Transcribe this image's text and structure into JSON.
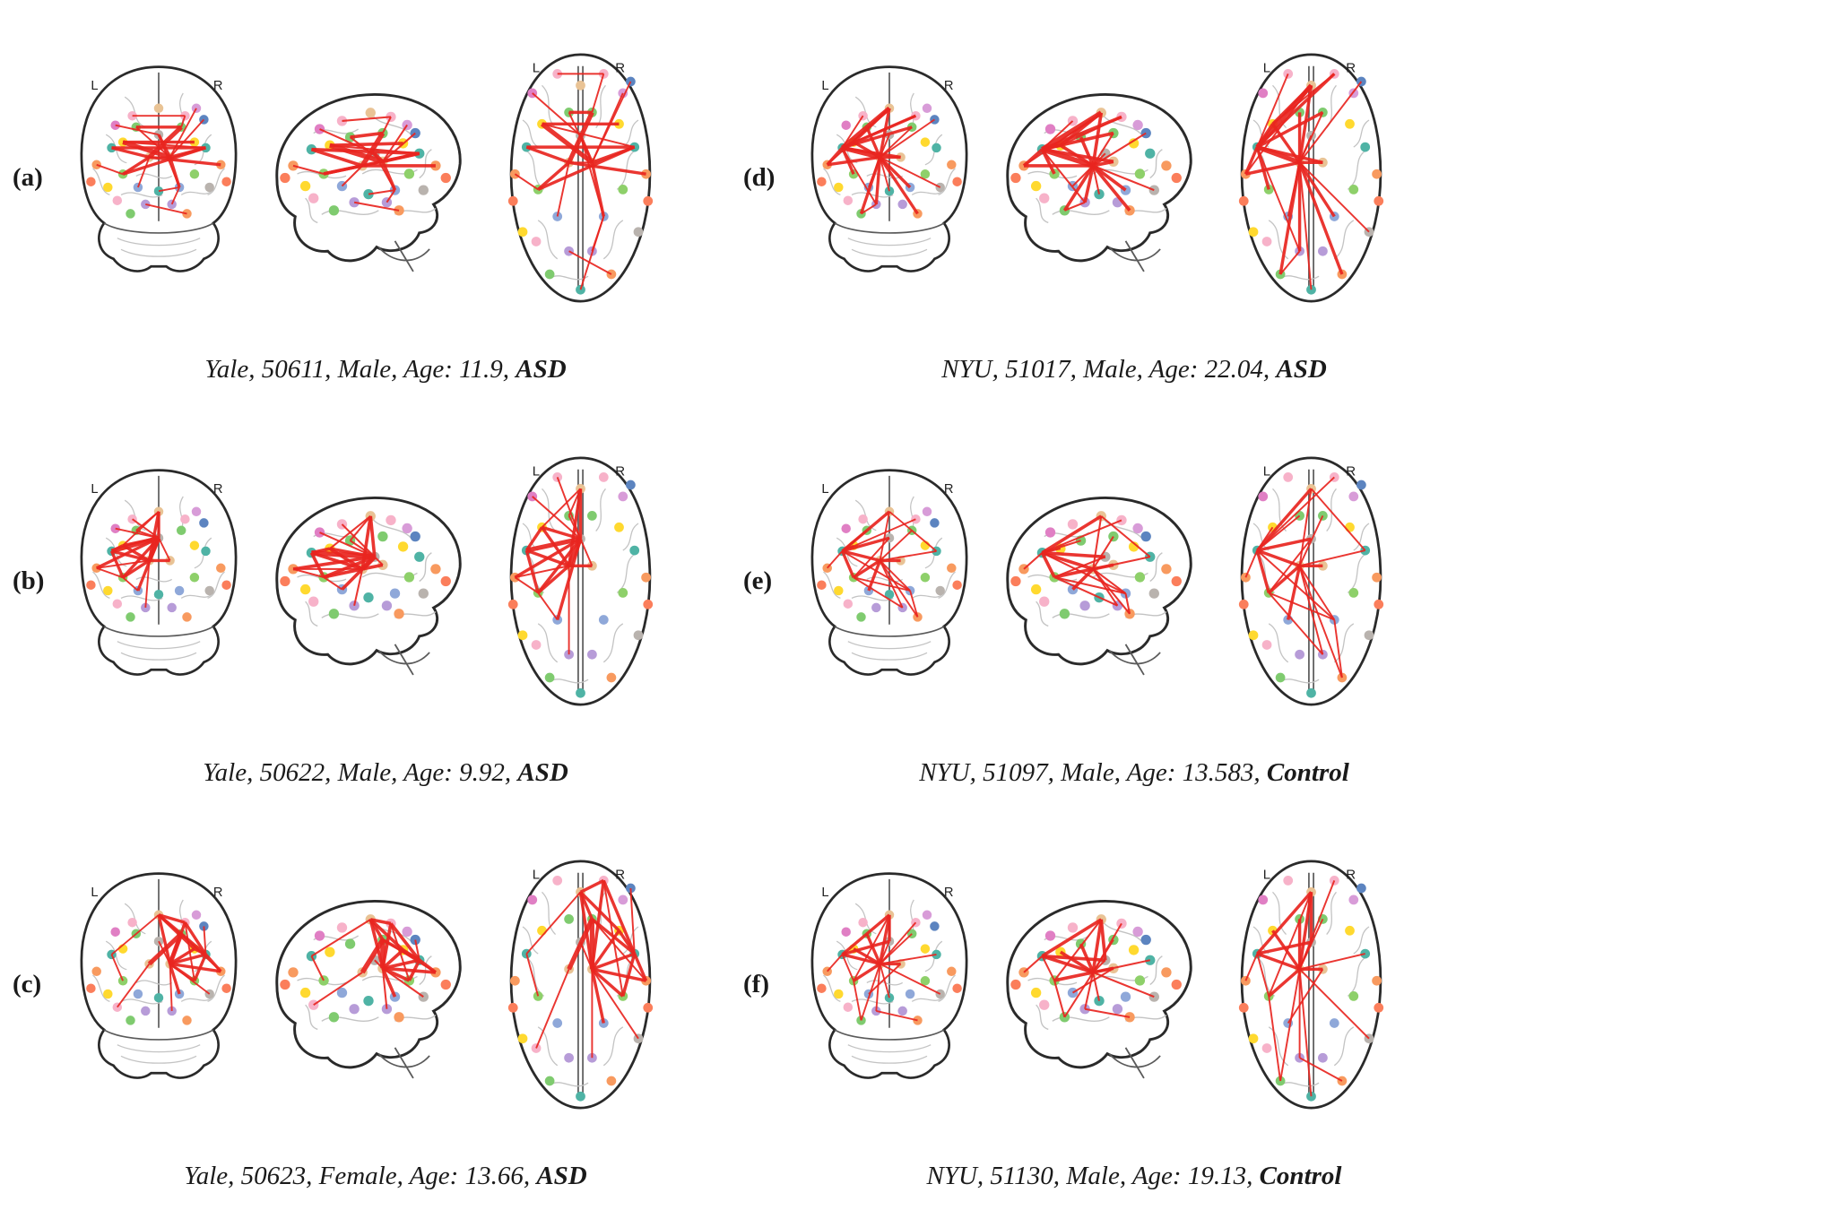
{
  "figure": {
    "view_labels": {
      "left": "L",
      "right": "R"
    },
    "age_label": "Age:",
    "edge_color": "#e8251f"
  },
  "nodes": [
    {
      "color": "#e9c395",
      "cor": [
        50,
        28
      ],
      "sag": [
        56,
        18
      ],
      "ax": [
        50,
        22
      ]
    },
    {
      "color": "#f7b2c9",
      "cor": [
        36,
        32
      ],
      "sag": [
        42,
        22
      ],
      "ax": [
        38,
        16
      ]
    },
    {
      "color": "#f7b2c9",
      "cor": [
        64,
        32
      ],
      "sag": [
        66,
        20
      ],
      "ax": [
        62,
        16
      ]
    },
    {
      "color": "#7fcb6f",
      "cor": [
        38,
        38
      ],
      "sag": [
        46,
        30
      ],
      "ax": [
        44,
        36
      ]
    },
    {
      "color": "#7fcb6f",
      "cor": [
        62,
        38
      ],
      "sag": [
        62,
        28
      ],
      "ax": [
        56,
        36
      ]
    },
    {
      "color": "#b9b3ae",
      "cor": [
        50,
        42
      ],
      "sag": [
        58,
        38
      ],
      "ax": [
        50,
        48
      ]
    },
    {
      "color": "#ffd92f",
      "cor": [
        31,
        46
      ],
      "sag": [
        36,
        34
      ],
      "ax": [
        30,
        42
      ]
    },
    {
      "color": "#ffd92f",
      "cor": [
        69,
        46
      ],
      "sag": [
        72,
        33
      ],
      "ax": [
        70,
        42
      ]
    },
    {
      "color": "#e07fc4",
      "cor": [
        27,
        37
      ],
      "sag": [
        31,
        26
      ],
      "ax": [
        25,
        26
      ]
    },
    {
      "color": "#4fb3a5",
      "cor": [
        25,
        49
      ],
      "sag": [
        27,
        36
      ],
      "ax": [
        22,
        54
      ]
    },
    {
      "color": "#4fb3a5",
      "cor": [
        75,
        49
      ],
      "sag": [
        80,
        38
      ],
      "ax": [
        78,
        54
      ]
    },
    {
      "color": "#d89cd8",
      "cor": [
        70,
        28
      ],
      "sag": [
        74,
        24
      ],
      "ax": [
        72,
        26
      ]
    },
    {
      "color": "#f89a5f",
      "cor": [
        17,
        58
      ],
      "sag": [
        18,
        44
      ],
      "ax": [
        16,
        68
      ]
    },
    {
      "color": "#f89a5f",
      "cor": [
        83,
        58
      ],
      "sag": [
        88,
        44
      ],
      "ax": [
        84,
        68
      ]
    },
    {
      "color": "#8ed06a",
      "cor": [
        31,
        63
      ],
      "sag": [
        33,
        48
      ],
      "ax": [
        28,
        76
      ]
    },
    {
      "color": "#8ed06a",
      "cor": [
        69,
        63
      ],
      "sag": [
        75,
        48
      ],
      "ax": [
        72,
        76
      ]
    },
    {
      "color": "#e9c395",
      "cor": [
        45,
        54
      ],
      "sag": [
        52,
        44
      ],
      "ax": [
        44,
        62
      ]
    },
    {
      "color": "#e9c395",
      "cor": [
        56,
        54
      ],
      "sag": [
        62,
        42
      ],
      "ax": [
        56,
        62
      ]
    },
    {
      "color": "#8fa8d9",
      "cor": [
        61,
        70
      ],
      "sag": [
        68,
        56
      ],
      "ax": [
        62,
        90
      ]
    },
    {
      "color": "#8fa8d9",
      "cor": [
        39,
        70
      ],
      "sag": [
        42,
        54
      ],
      "ax": [
        38,
        90
      ]
    },
    {
      "color": "#ffd92f",
      "cor": [
        23,
        70
      ],
      "sag": [
        24,
        54
      ],
      "ax": [
        20,
        98
      ]
    },
    {
      "color": "#b9b3ae",
      "cor": [
        77,
        70
      ],
      "sag": [
        82,
        56
      ],
      "ax": [
        80,
        98
      ]
    },
    {
      "color": "#fb7e5b",
      "cor": [
        14,
        67
      ],
      "sag": [
        14,
        50
      ],
      "ax": [
        15,
        82
      ]
    },
    {
      "color": "#fb7e5b",
      "cor": [
        86,
        67
      ],
      "sag": [
        93,
        50
      ],
      "ax": [
        85,
        82
      ]
    },
    {
      "color": "#b79cd8",
      "cor": [
        43,
        79
      ],
      "sag": [
        48,
        62
      ],
      "ax": [
        44,
        108
      ]
    },
    {
      "color": "#b79cd8",
      "cor": [
        57,
        79
      ],
      "sag": [
        64,
        62
      ],
      "ax": [
        56,
        108
      ]
    },
    {
      "color": "#7fcb6f",
      "cor": [
        35,
        84
      ],
      "sag": [
        38,
        66
      ],
      "ax": [
        34,
        120
      ]
    },
    {
      "color": "#f89a5f",
      "cor": [
        65,
        84
      ],
      "sag": [
        70,
        66
      ],
      "ax": [
        66,
        120
      ]
    },
    {
      "color": "#4fb3a5",
      "cor": [
        50,
        72
      ],
      "sag": [
        55,
        58
      ],
      "ax": [
        50,
        128
      ]
    },
    {
      "color": "#f7b2c9",
      "cor": [
        28,
        77
      ],
      "sag": [
        28,
        60
      ],
      "ax": [
        27,
        103
      ]
    },
    {
      "color": "#5c84c0",
      "cor": [
        74,
        34
      ],
      "sag": [
        78,
        28
      ],
      "ax": [
        76,
        20
      ]
    }
  ],
  "panels": [
    {
      "label": "(a)",
      "site": "Yale",
      "subject_id": "50611",
      "sex": "Male",
      "age": "11.9",
      "group": "ASD",
      "edges": [
        [
          3,
          4,
          1.6
        ],
        [
          1,
          2,
          0.9
        ],
        [
          6,
          7,
          1.6
        ],
        [
          8,
          5,
          0.9
        ],
        [
          9,
          10,
          1.6
        ],
        [
          6,
          10,
          0.9
        ],
        [
          4,
          16,
          2.4
        ],
        [
          9,
          16,
          1.6
        ],
        [
          13,
          16,
          1.6
        ],
        [
          10,
          14,
          1.6
        ],
        [
          3,
          17,
          0.9
        ],
        [
          5,
          17,
          1.6
        ],
        [
          16,
          17,
          0.9
        ],
        [
          12,
          14,
          0.9
        ],
        [
          6,
          17,
          2.4
        ],
        [
          17,
          10,
          1.6
        ],
        [
          16,
          19,
          0.9
        ],
        [
          17,
          18,
          1.6
        ],
        [
          5,
          18,
          0.9
        ],
        [
          24,
          27,
          0.9
        ],
        [
          18,
          25,
          0.9
        ],
        [
          14,
          16,
          1.6
        ],
        [
          2,
          4,
          0.9
        ],
        [
          28,
          18,
          0.9
        ],
        [
          11,
          17,
          0.9
        ],
        [
          30,
          17,
          0.9
        ]
      ]
    },
    {
      "label": "(b)",
      "site": "Yale",
      "subject_id": "50622",
      "sex": "Male",
      "age": "9.92",
      "group": "ASD",
      "edges": [
        [
          0,
          5,
          1.6
        ],
        [
          0,
          6,
          0.9
        ],
        [
          5,
          6,
          1.6
        ],
        [
          5,
          9,
          2.4
        ],
        [
          0,
          3,
          0.9
        ],
        [
          5,
          12,
          1.6
        ],
        [
          6,
          9,
          1.6
        ],
        [
          5,
          16,
          2.4
        ],
        [
          9,
          16,
          1.6
        ],
        [
          6,
          16,
          1.6
        ],
        [
          12,
          16,
          0.9
        ],
        [
          5,
          14,
          1.6
        ],
        [
          9,
          14,
          1.6
        ],
        [
          16,
          14,
          1.6
        ],
        [
          3,
          5,
          0.9
        ],
        [
          1,
          5,
          0.9
        ],
        [
          16,
          17,
          1.6
        ],
        [
          5,
          17,
          0.9
        ],
        [
          14,
          19,
          0.9
        ],
        [
          16,
          24,
          0.9
        ],
        [
          12,
          14,
          0.9
        ],
        [
          5,
          19,
          1.6
        ],
        [
          0,
          16,
          1.6
        ],
        [
          8,
          5,
          0.9
        ]
      ]
    },
    {
      "label": "(c)",
      "site": "Yale",
      "subject_id": "50623",
      "sex": "Female",
      "age": "13.66",
      "group": "ASD",
      "edges": [
        [
          0,
          4,
          1.6
        ],
        [
          0,
          2,
          1.6
        ],
        [
          4,
          10,
          1.6
        ],
        [
          2,
          10,
          1.6
        ],
        [
          0,
          7,
          1.6
        ],
        [
          4,
          16,
          2.4
        ],
        [
          10,
          15,
          1.6
        ],
        [
          7,
          10,
          1.6
        ],
        [
          2,
          17,
          1.6
        ],
        [
          4,
          17,
          2.4
        ],
        [
          10,
          17,
          1.6
        ],
        [
          15,
          17,
          1.6
        ],
        [
          0,
          9,
          0.9
        ],
        [
          9,
          14,
          0.9
        ],
        [
          13,
          17,
          1.6
        ],
        [
          17,
          21,
          0.9
        ],
        [
          2,
          15,
          0.9
        ],
        [
          10,
          13,
          1.6
        ],
        [
          17,
          18,
          1.6
        ],
        [
          5,
          17,
          0.9
        ],
        [
          0,
          17,
          1.6
        ],
        [
          4,
          13,
          0.9
        ],
        [
          29,
          16,
          0.9
        ],
        [
          17,
          25,
          0.9
        ],
        [
          7,
          17,
          1.6
        ],
        [
          30,
          10,
          0.9
        ]
      ]
    },
    {
      "label": "(d)",
      "site": "NYU",
      "subject_id": "51017",
      "sex": "Male",
      "age": "22.04",
      "group": "ASD",
      "edges": [
        [
          0,
          9,
          2.4
        ],
        [
          0,
          6,
          1.6
        ],
        [
          9,
          6,
          1.6
        ],
        [
          9,
          12,
          1.6
        ],
        [
          4,
          9,
          1.6
        ],
        [
          2,
          9,
          1.6
        ],
        [
          9,
          14,
          1.6
        ],
        [
          9,
          16,
          2.4
        ],
        [
          6,
          16,
          1.6
        ],
        [
          12,
          16,
          1.6
        ],
        [
          0,
          16,
          1.6
        ],
        [
          4,
          16,
          0.9
        ],
        [
          16,
          24,
          1.6
        ],
        [
          16,
          26,
          1.6
        ],
        [
          9,
          24,
          0.9
        ],
        [
          16,
          27,
          1.6
        ],
        [
          5,
          16,
          0.9
        ],
        [
          16,
          21,
          0.9
        ],
        [
          9,
          17,
          1.6
        ],
        [
          1,
          9,
          0.9
        ],
        [
          16,
          28,
          0.9
        ],
        [
          24,
          26,
          0.9
        ],
        [
          16,
          19,
          0.9
        ],
        [
          2,
          6,
          0.9
        ],
        [
          0,
          12,
          0.9
        ],
        [
          17,
          16,
          1.6
        ],
        [
          3,
          16,
          1.6
        ],
        [
          16,
          18,
          1.6
        ],
        [
          30,
          16,
          0.9
        ]
      ]
    },
    {
      "label": "(e)",
      "site": "NYU",
      "subject_id": "51097",
      "sex": "Male",
      "age": "13.583",
      "group": "Control",
      "edges": [
        [
          0,
          9,
          1.6
        ],
        [
          0,
          10,
          0.9
        ],
        [
          9,
          5,
          1.6
        ],
        [
          6,
          9,
          0.9
        ],
        [
          9,
          14,
          1.6
        ],
        [
          5,
          14,
          0.9
        ],
        [
          9,
          16,
          1.6
        ],
        [
          14,
          16,
          1.6
        ],
        [
          10,
          16,
          0.9
        ],
        [
          16,
          17,
          1.6
        ],
        [
          2,
          9,
          0.9
        ],
        [
          16,
          18,
          0.9
        ],
        [
          14,
          18,
          0.9
        ],
        [
          9,
          18,
          0.9
        ],
        [
          0,
          16,
          0.9
        ],
        [
          16,
          27,
          0.9
        ],
        [
          18,
          27,
          0.9
        ],
        [
          4,
          16,
          0.9
        ],
        [
          9,
          12,
          0.9
        ],
        [
          16,
          25,
          0.9
        ],
        [
          14,
          25,
          0.9
        ],
        [
          3,
          9,
          0.9
        ],
        [
          16,
          19,
          1.6
        ]
      ]
    },
    {
      "label": "(f)",
      "site": "NYU",
      "subject_id": "51130",
      "sex": "Male",
      "age": "19.13",
      "group": "Control",
      "edges": [
        [
          0,
          5,
          1.6
        ],
        [
          0,
          9,
          1.6
        ],
        [
          5,
          9,
          1.6
        ],
        [
          9,
          16,
          1.6
        ],
        [
          5,
          16,
          0.9
        ],
        [
          0,
          16,
          1.6
        ],
        [
          16,
          14,
          1.6
        ],
        [
          16,
          17,
          1.6
        ],
        [
          9,
          14,
          0.9
        ],
        [
          2,
          16,
          0.9
        ],
        [
          16,
          24,
          0.9
        ],
        [
          16,
          26,
          0.9
        ],
        [
          14,
          26,
          0.9
        ],
        [
          4,
          16,
          0.9
        ],
        [
          16,
          21,
          0.9
        ],
        [
          9,
          12,
          0.9
        ],
        [
          17,
          19,
          0.9
        ],
        [
          16,
          28,
          0.9
        ],
        [
          24,
          27,
          0.9
        ],
        [
          0,
          14,
          0.9
        ],
        [
          10,
          16,
          0.9
        ],
        [
          3,
          16,
          1.6
        ],
        [
          6,
          16,
          1.6
        ]
      ]
    }
  ]
}
